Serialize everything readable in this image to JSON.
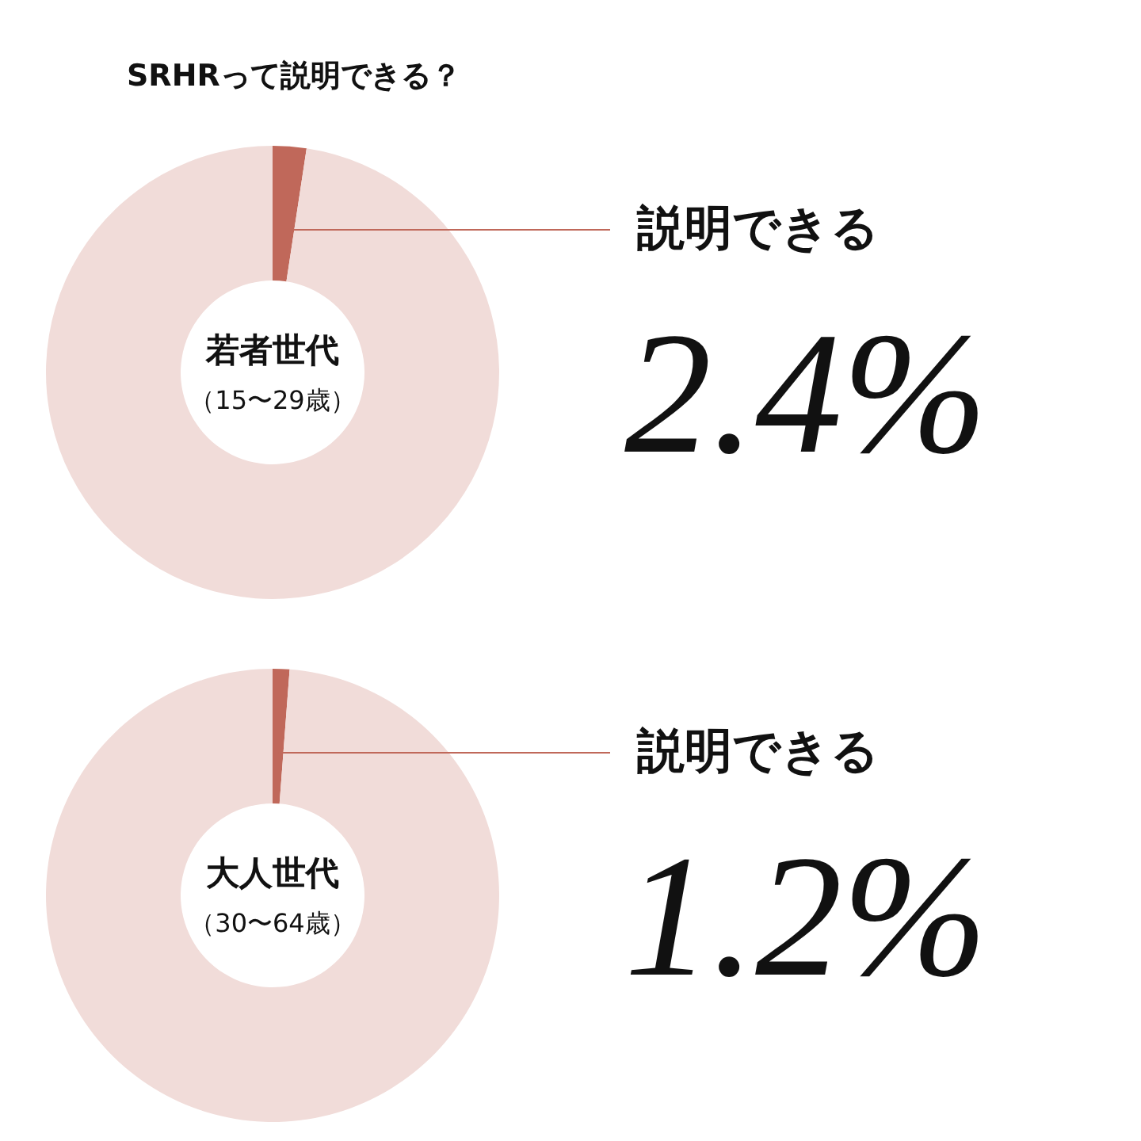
{
  "chart_data": [
    {
      "type": "donut",
      "title": "SRHRって説明できる？",
      "categories": [
        "説明できる",
        null
      ],
      "values": [
        2.4,
        97.6
      ],
      "colors": [
        "#c0685a",
        "#f1dcd9"
      ],
      "value_labels": [
        "2.4%",
        null
      ],
      "annotations": [
        "若者世代",
        "（15〜29歳）"
      ],
      "legend": false
    },
    {
      "type": "donut",
      "categories": [
        "説明できる",
        null
      ],
      "values": [
        1.2,
        98.8
      ],
      "colors": [
        "#c0685a",
        "#f1dcd9"
      ],
      "value_labels": [
        "1.2%",
        null
      ],
      "annotations": [
        "大人世代",
        "（30〜64歳）"
      ],
      "legend": false
    }
  ]
}
